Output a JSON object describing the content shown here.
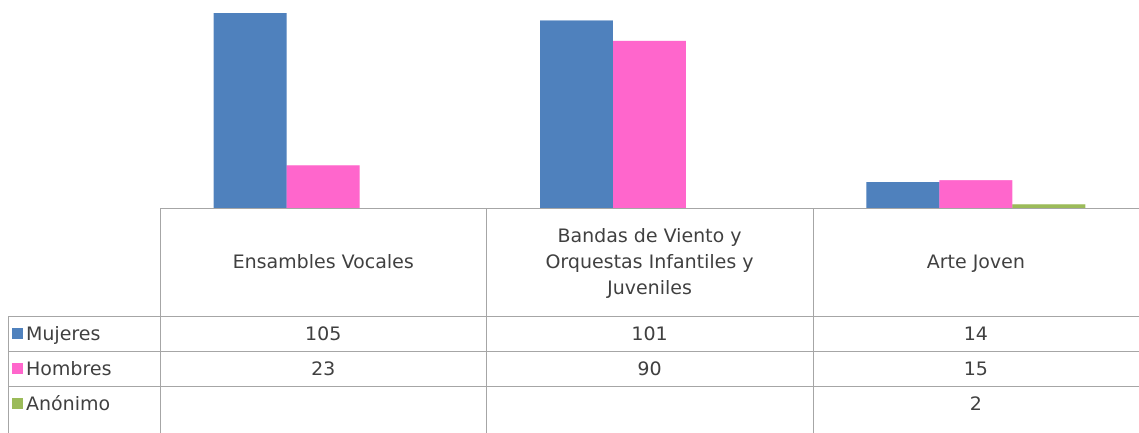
{
  "chart_data": {
    "type": "bar",
    "categories": [
      "Ensambles Vocales",
      "Bandas de Viento y Orquestas Infantiles y Juveniles",
      "Arte Joven"
    ],
    "series": [
      {
        "name": "Mujeres",
        "color": "#4f81bd",
        "values": [
          105,
          101,
          14
        ]
      },
      {
        "name": "Hombres",
        "color": "#ff66cc",
        "values": [
          23,
          90,
          15
        ]
      },
      {
        "name": "Anónimo",
        "color": "#9bbb59",
        "values": [
          null,
          null,
          2
        ]
      }
    ],
    "ylim": [
      0,
      112
    ]
  }
}
